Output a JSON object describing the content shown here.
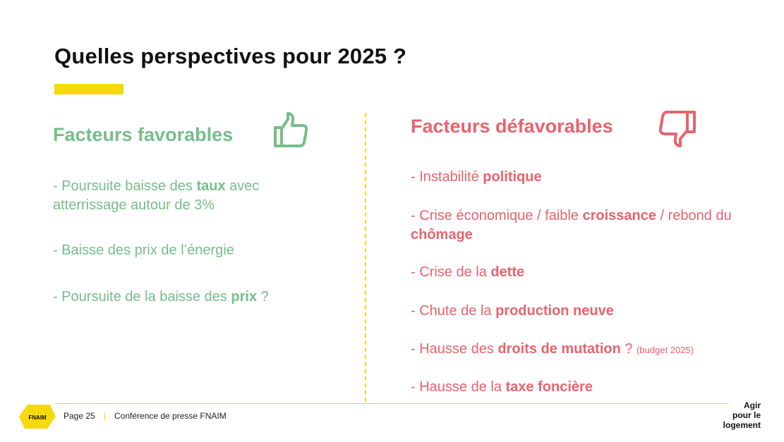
{
  "title": "Quelles perspectives pour 2025 ?",
  "colors": {
    "accent": "#F5D90A",
    "favorable": "#76BD8B",
    "defavorable": "#E8636D"
  },
  "favorables": {
    "heading": "Facteurs favorables",
    "icon": "thumbs-up-icon",
    "items": [
      {
        "before": "- Poursuite baisse des ",
        "bold": "taux",
        "after": " avec atterrissage autour de 3%"
      },
      {
        "before": "- Baisse des prix de l’énergie",
        "bold": "",
        "after": ""
      },
      {
        "before": "- Poursuite de la baisse des ",
        "bold": "prix",
        "after": " ?"
      }
    ]
  },
  "defavorables": {
    "heading": "Facteurs défavorables",
    "icon": "thumbs-down-icon",
    "items": [
      {
        "before": "- Instabilité ",
        "bold": "politique",
        "after": ""
      },
      {
        "before": "- Crise économique / faible ",
        "bold": "croissance",
        "after": " / rebond du ",
        "bold2": "chômage"
      },
      {
        "before": "- Crise de la ",
        "bold": "dette",
        "after": ""
      },
      {
        "before": "- Chute de la ",
        "bold": "production neuve",
        "after": ""
      },
      {
        "before": "- Hausse des ",
        "bold": "droits de mutation",
        "after": " ? ",
        "small": "(budget 2025)"
      },
      {
        "before": "- Hausse de la ",
        "bold": "taxe foncière",
        "after": ""
      }
    ]
  },
  "footer": {
    "logo_text": "FNAIM",
    "page": "Page 25",
    "separator": "|",
    "event": "Conférence de presse FNAIM",
    "tagline": [
      "Agir",
      "pour le",
      "logement"
    ]
  }
}
